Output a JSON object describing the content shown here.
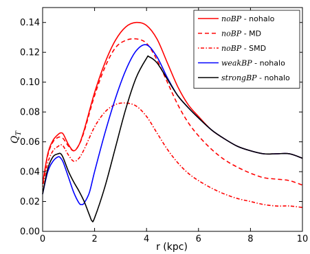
{
  "chart_data": {
    "type": "line",
    "xlabel": "r (kpc)",
    "ylabel": "Q",
    "ylabel_sub": "T",
    "xlim": [
      0,
      10
    ],
    "ylim": [
      0,
      0.15
    ],
    "xticks": [
      "0",
      "2",
      "4",
      "6",
      "8",
      "10"
    ],
    "yticks": [
      "0.00",
      "0.02",
      "0.04",
      "0.06",
      "0.08",
      "0.10",
      "0.12",
      "0.14"
    ],
    "grid": false,
    "legend_position": "top-right",
    "series": [
      {
        "name": "noBP - nohalo",
        "name_italic": "noBP",
        "name_rest": " - nohalo",
        "color": "#ff0000",
        "style": "solid",
        "x": [
          0,
          0.2,
          0.4,
          0.6,
          0.7,
          0.8,
          1.0,
          1.2,
          1.4,
          1.6,
          2.0,
          2.4,
          2.8,
          3.2,
          3.6,
          4.0,
          4.4,
          4.8,
          5.2,
          5.6,
          6.0,
          6.5,
          7.0,
          7.5,
          8.0,
          8.5,
          9.0,
          9.5,
          10.0
        ],
        "y": [
          0.032,
          0.052,
          0.061,
          0.065,
          0.066,
          0.065,
          0.058,
          0.054,
          0.058,
          0.068,
          0.093,
          0.113,
          0.128,
          0.137,
          0.14,
          0.138,
          0.129,
          0.113,
          0.097,
          0.085,
          0.077,
          0.068,
          0.062,
          0.057,
          0.054,
          0.052,
          0.052,
          0.052,
          0.049
        ]
      },
      {
        "name": "noBP - MD",
        "name_italic": "noBP",
        "name_rest": " - MD",
        "color": "#ff0000",
        "style": "dashed",
        "x": [
          0,
          0.2,
          0.4,
          0.6,
          0.7,
          0.8,
          1.0,
          1.2,
          1.4,
          1.6,
          2.0,
          2.4,
          2.8,
          3.2,
          3.6,
          4.0,
          4.4,
          4.8,
          5.2,
          5.6,
          6.0,
          6.5,
          7.0,
          7.5,
          8.0,
          8.5,
          9.0,
          9.5,
          10.0
        ],
        "y": [
          0.032,
          0.051,
          0.06,
          0.063,
          0.063,
          0.062,
          0.057,
          0.054,
          0.058,
          0.067,
          0.091,
          0.11,
          0.123,
          0.128,
          0.129,
          0.126,
          0.115,
          0.1,
          0.085,
          0.073,
          0.064,
          0.055,
          0.048,
          0.043,
          0.039,
          0.036,
          0.035,
          0.034,
          0.031
        ]
      },
      {
        "name": "noBP - SMD",
        "name_italic": "noBP",
        "name_rest": " - SMD",
        "color": "#ff0000",
        "style": "dashdot",
        "x": [
          0,
          0.2,
          0.4,
          0.6,
          0.7,
          0.8,
          1.0,
          1.2,
          1.4,
          1.6,
          2.0,
          2.4,
          2.8,
          3.2,
          3.6,
          4.0,
          4.4,
          4.8,
          5.2,
          5.6,
          6.0,
          6.5,
          7.0,
          7.5,
          8.0,
          8.5,
          9.0,
          9.5,
          10.0
        ],
        "y": [
          0.03,
          0.046,
          0.054,
          0.057,
          0.058,
          0.057,
          0.051,
          0.047,
          0.049,
          0.055,
          0.07,
          0.08,
          0.085,
          0.086,
          0.084,
          0.077,
          0.066,
          0.055,
          0.046,
          0.039,
          0.034,
          0.029,
          0.025,
          0.022,
          0.02,
          0.018,
          0.017,
          0.017,
          0.016
        ]
      },
      {
        "name": "weakBP - nohalo",
        "name_italic": "weakBP",
        "name_rest": " - nohalo",
        "color": "#0000ff",
        "style": "solid",
        "x": [
          0,
          0.2,
          0.4,
          0.6,
          0.7,
          0.8,
          1.0,
          1.2,
          1.4,
          1.5,
          1.6,
          1.8,
          2.0,
          2.4,
          2.8,
          3.2,
          3.6,
          4.0,
          4.4,
          4.8,
          5.2,
          5.6,
          6.0,
          6.5,
          7.0,
          7.5,
          8.0,
          8.5,
          9.0,
          9.5,
          10.0
        ],
        "y": [
          0.025,
          0.04,
          0.047,
          0.05,
          0.049,
          0.046,
          0.036,
          0.026,
          0.019,
          0.018,
          0.019,
          0.026,
          0.04,
          0.066,
          0.089,
          0.108,
          0.121,
          0.125,
          0.117,
          0.103,
          0.091,
          0.083,
          0.076,
          0.068,
          0.062,
          0.057,
          0.054,
          0.052,
          0.052,
          0.052,
          0.049
        ]
      },
      {
        "name": "strongBP - nohalo",
        "name_italic": "strongBP",
        "name_rest": " - nohalo",
        "color": "#000000",
        "style": "solid",
        "x": [
          0,
          0.2,
          0.4,
          0.6,
          0.7,
          0.8,
          1.0,
          1.2,
          1.4,
          1.6,
          1.8,
          1.9,
          2.0,
          2.4,
          2.8,
          3.2,
          3.6,
          4.0,
          4.1,
          4.4,
          4.8,
          5.2,
          5.6,
          6.0,
          6.5,
          7.0,
          7.5,
          8.0,
          8.5,
          9.0,
          9.5,
          10.0
        ],
        "y": [
          0.025,
          0.042,
          0.05,
          0.052,
          0.052,
          0.049,
          0.04,
          0.033,
          0.027,
          0.02,
          0.011,
          0.007,
          0.009,
          0.03,
          0.056,
          0.082,
          0.103,
          0.116,
          0.117,
          0.113,
          0.102,
          0.091,
          0.083,
          0.076,
          0.068,
          0.062,
          0.057,
          0.054,
          0.052,
          0.052,
          0.052,
          0.049
        ]
      }
    ]
  }
}
